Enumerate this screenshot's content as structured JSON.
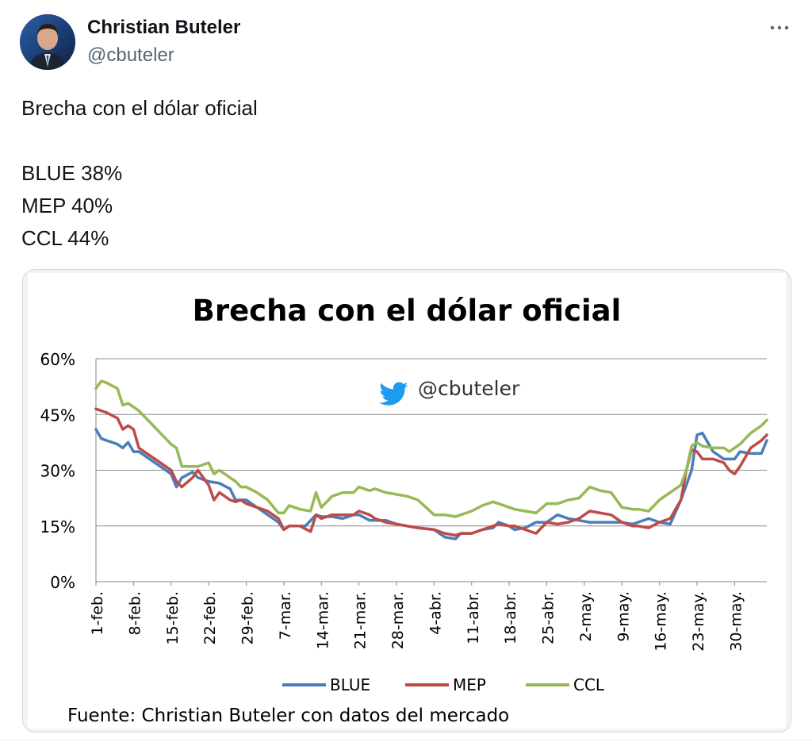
{
  "author": {
    "name": "Christian Buteler",
    "handle": "@cbuteler"
  },
  "icons": {
    "more": "more-icon",
    "bird": "twitter-bird-icon"
  },
  "tweet": {
    "lines": [
      "Brecha con el dólar oficial",
      "",
      "BLUE 38%",
      "MEP 40%",
      "CCL 44%"
    ]
  },
  "colors": {
    "blue": "#4a7ebb",
    "mep": "#be4b48",
    "ccl": "#98b954",
    "twitter": "#1d9bf0"
  },
  "chart_data": {
    "type": "line",
    "title": "Brecha con el dólar oficial",
    "watermark": "@cbuteler",
    "source": "Fuente: Christian Buteler con datos del mercado",
    "ylim": [
      0,
      60
    ],
    "yticks": [
      "0%",
      "15%",
      "30%",
      "45%",
      "60%"
    ],
    "ytick_values": [
      0,
      15,
      30,
      45,
      60
    ],
    "xlim": [
      0,
      125
    ],
    "xticks": [
      "1-feb.",
      "8-feb.",
      "15-feb.",
      "22-feb.",
      "29-feb.",
      "7-mar.",
      "14-mar.",
      "21-mar.",
      "28-mar.",
      "4-abr.",
      "11-abr.",
      "18-abr.",
      "25-abr.",
      "2-may.",
      "9-may.",
      "16-may.",
      "23-may.",
      "30-may."
    ],
    "xtick_values": [
      0,
      7,
      14,
      21,
      28,
      35,
      42,
      49,
      56,
      63,
      70,
      77,
      84,
      91,
      98,
      105,
      112,
      119
    ],
    "grid": true,
    "legend_position": "bottom",
    "series": [
      {
        "name": "BLUE",
        "color": "#4a7ebb",
        "x": [
          0,
          1,
          2,
          4,
          5,
          6,
          7,
          8,
          10,
          12,
          14,
          15,
          16,
          18,
          19,
          21,
          23,
          25,
          26,
          27,
          28,
          30,
          32,
          34,
          35,
          36,
          38,
          39,
          41,
          42,
          43,
          44,
          46,
          48,
          49,
          51,
          52,
          54,
          56,
          58,
          60,
          63,
          65,
          67,
          68,
          70,
          72,
          74,
          75,
          77,
          78,
          80,
          82,
          84,
          86,
          88,
          90,
          92,
          94,
          96,
          98,
          100,
          101,
          103,
          105,
          107,
          109,
          110,
          111,
          112,
          113,
          115,
          117,
          119,
          120,
          122,
          124,
          125
        ],
        "y": [
          41,
          38.5,
          38,
          37,
          36,
          37.5,
          35,
          35,
          33,
          31,
          29,
          25.5,
          28,
          29.5,
          28,
          27,
          26.5,
          25,
          22,
          22,
          22,
          20,
          18,
          16,
          14,
          15,
          15,
          15,
          18,
          17.5,
          17.5,
          17.5,
          17,
          18,
          18,
          16.5,
          16.5,
          16.5,
          15.5,
          15,
          14.5,
          14,
          12,
          11.5,
          13,
          13,
          14,
          14.5,
          16,
          15,
          14,
          14.5,
          16,
          16,
          18,
          17,
          16.5,
          16,
          16,
          16,
          16,
          15.5,
          16,
          17,
          16,
          15.5,
          22,
          26,
          30,
          39.5,
          40,
          35,
          33,
          33,
          35,
          34.5,
          34.5,
          38
        ]
      },
      {
        "name": "MEP",
        "color": "#be4b48",
        "x": [
          0,
          1,
          2,
          4,
          5,
          6,
          7,
          8,
          10,
          12,
          14,
          15,
          16,
          18,
          19,
          21,
          22,
          23,
          25,
          26,
          27,
          28,
          30,
          32,
          34,
          35,
          36,
          38,
          40,
          41,
          42,
          44,
          46,
          48,
          49,
          51,
          52,
          54,
          56,
          58,
          60,
          63,
          65,
          67,
          68,
          70,
          72,
          74,
          75,
          77,
          78,
          80,
          82,
          84,
          86,
          88,
          90,
          92,
          94,
          96,
          98,
          100,
          101,
          103,
          105,
          107,
          109,
          110,
          111,
          112,
          113,
          115,
          117,
          118,
          119,
          120,
          122,
          124,
          125
        ],
        "y": [
          46.5,
          46,
          45.5,
          44,
          41,
          42,
          41,
          36,
          34,
          32,
          30,
          27,
          25.5,
          28,
          30,
          26,
          22,
          24,
          22,
          21.5,
          22,
          21,
          20,
          19,
          17,
          14,
          15,
          15,
          13.5,
          18,
          17,
          18,
          18,
          18,
          19,
          18,
          17,
          16,
          15.5,
          15,
          14.5,
          14,
          13,
          12.5,
          13,
          13,
          14,
          15,
          15.5,
          15,
          15,
          14,
          13,
          16,
          15.5,
          16,
          17,
          19,
          18.5,
          18,
          16,
          15,
          15,
          14.5,
          16,
          17,
          22,
          30,
          35.5,
          35,
          33,
          33,
          32,
          30,
          29,
          31,
          36,
          38,
          39.5
        ]
      },
      {
        "name": "CCL",
        "color": "#98b954",
        "x": [
          0,
          1,
          2,
          4,
          5,
          6,
          7,
          8,
          10,
          12,
          14,
          15,
          16,
          18,
          19,
          21,
          22,
          23,
          25,
          26,
          27,
          28,
          30,
          32,
          34,
          35,
          36,
          38,
          40,
          41,
          42,
          44,
          46,
          48,
          49,
          51,
          52,
          54,
          56,
          58,
          60,
          63,
          65,
          67,
          68,
          70,
          72,
          74,
          75,
          77,
          78,
          80,
          82,
          84,
          86,
          88,
          90,
          92,
          94,
          96,
          98,
          100,
          101,
          103,
          105,
          107,
          109,
          110,
          111,
          112,
          113,
          115,
          117,
          118,
          119,
          120,
          122,
          124,
          125
        ],
        "y": [
          52,
          54,
          53.5,
          52,
          47.5,
          48,
          47,
          46,
          43,
          40,
          37,
          36,
          31,
          31,
          31,
          32,
          29,
          30,
          28,
          27,
          25.5,
          25.5,
          24,
          22,
          18.5,
          18.5,
          20.5,
          19.5,
          19,
          24,
          20,
          23,
          24,
          24,
          25.5,
          24.5,
          25,
          24,
          23.5,
          23,
          22,
          18,
          18,
          17.5,
          18,
          19,
          20.5,
          21.5,
          21,
          20,
          19.5,
          19,
          18.5,
          21,
          21,
          22,
          22.5,
          25.5,
          24.5,
          24,
          20,
          19.5,
          19.5,
          19,
          22,
          24,
          26,
          30,
          36.5,
          37.5,
          36.5,
          36,
          36,
          35,
          36,
          37,
          40,
          42,
          43.5
        ]
      }
    ]
  }
}
